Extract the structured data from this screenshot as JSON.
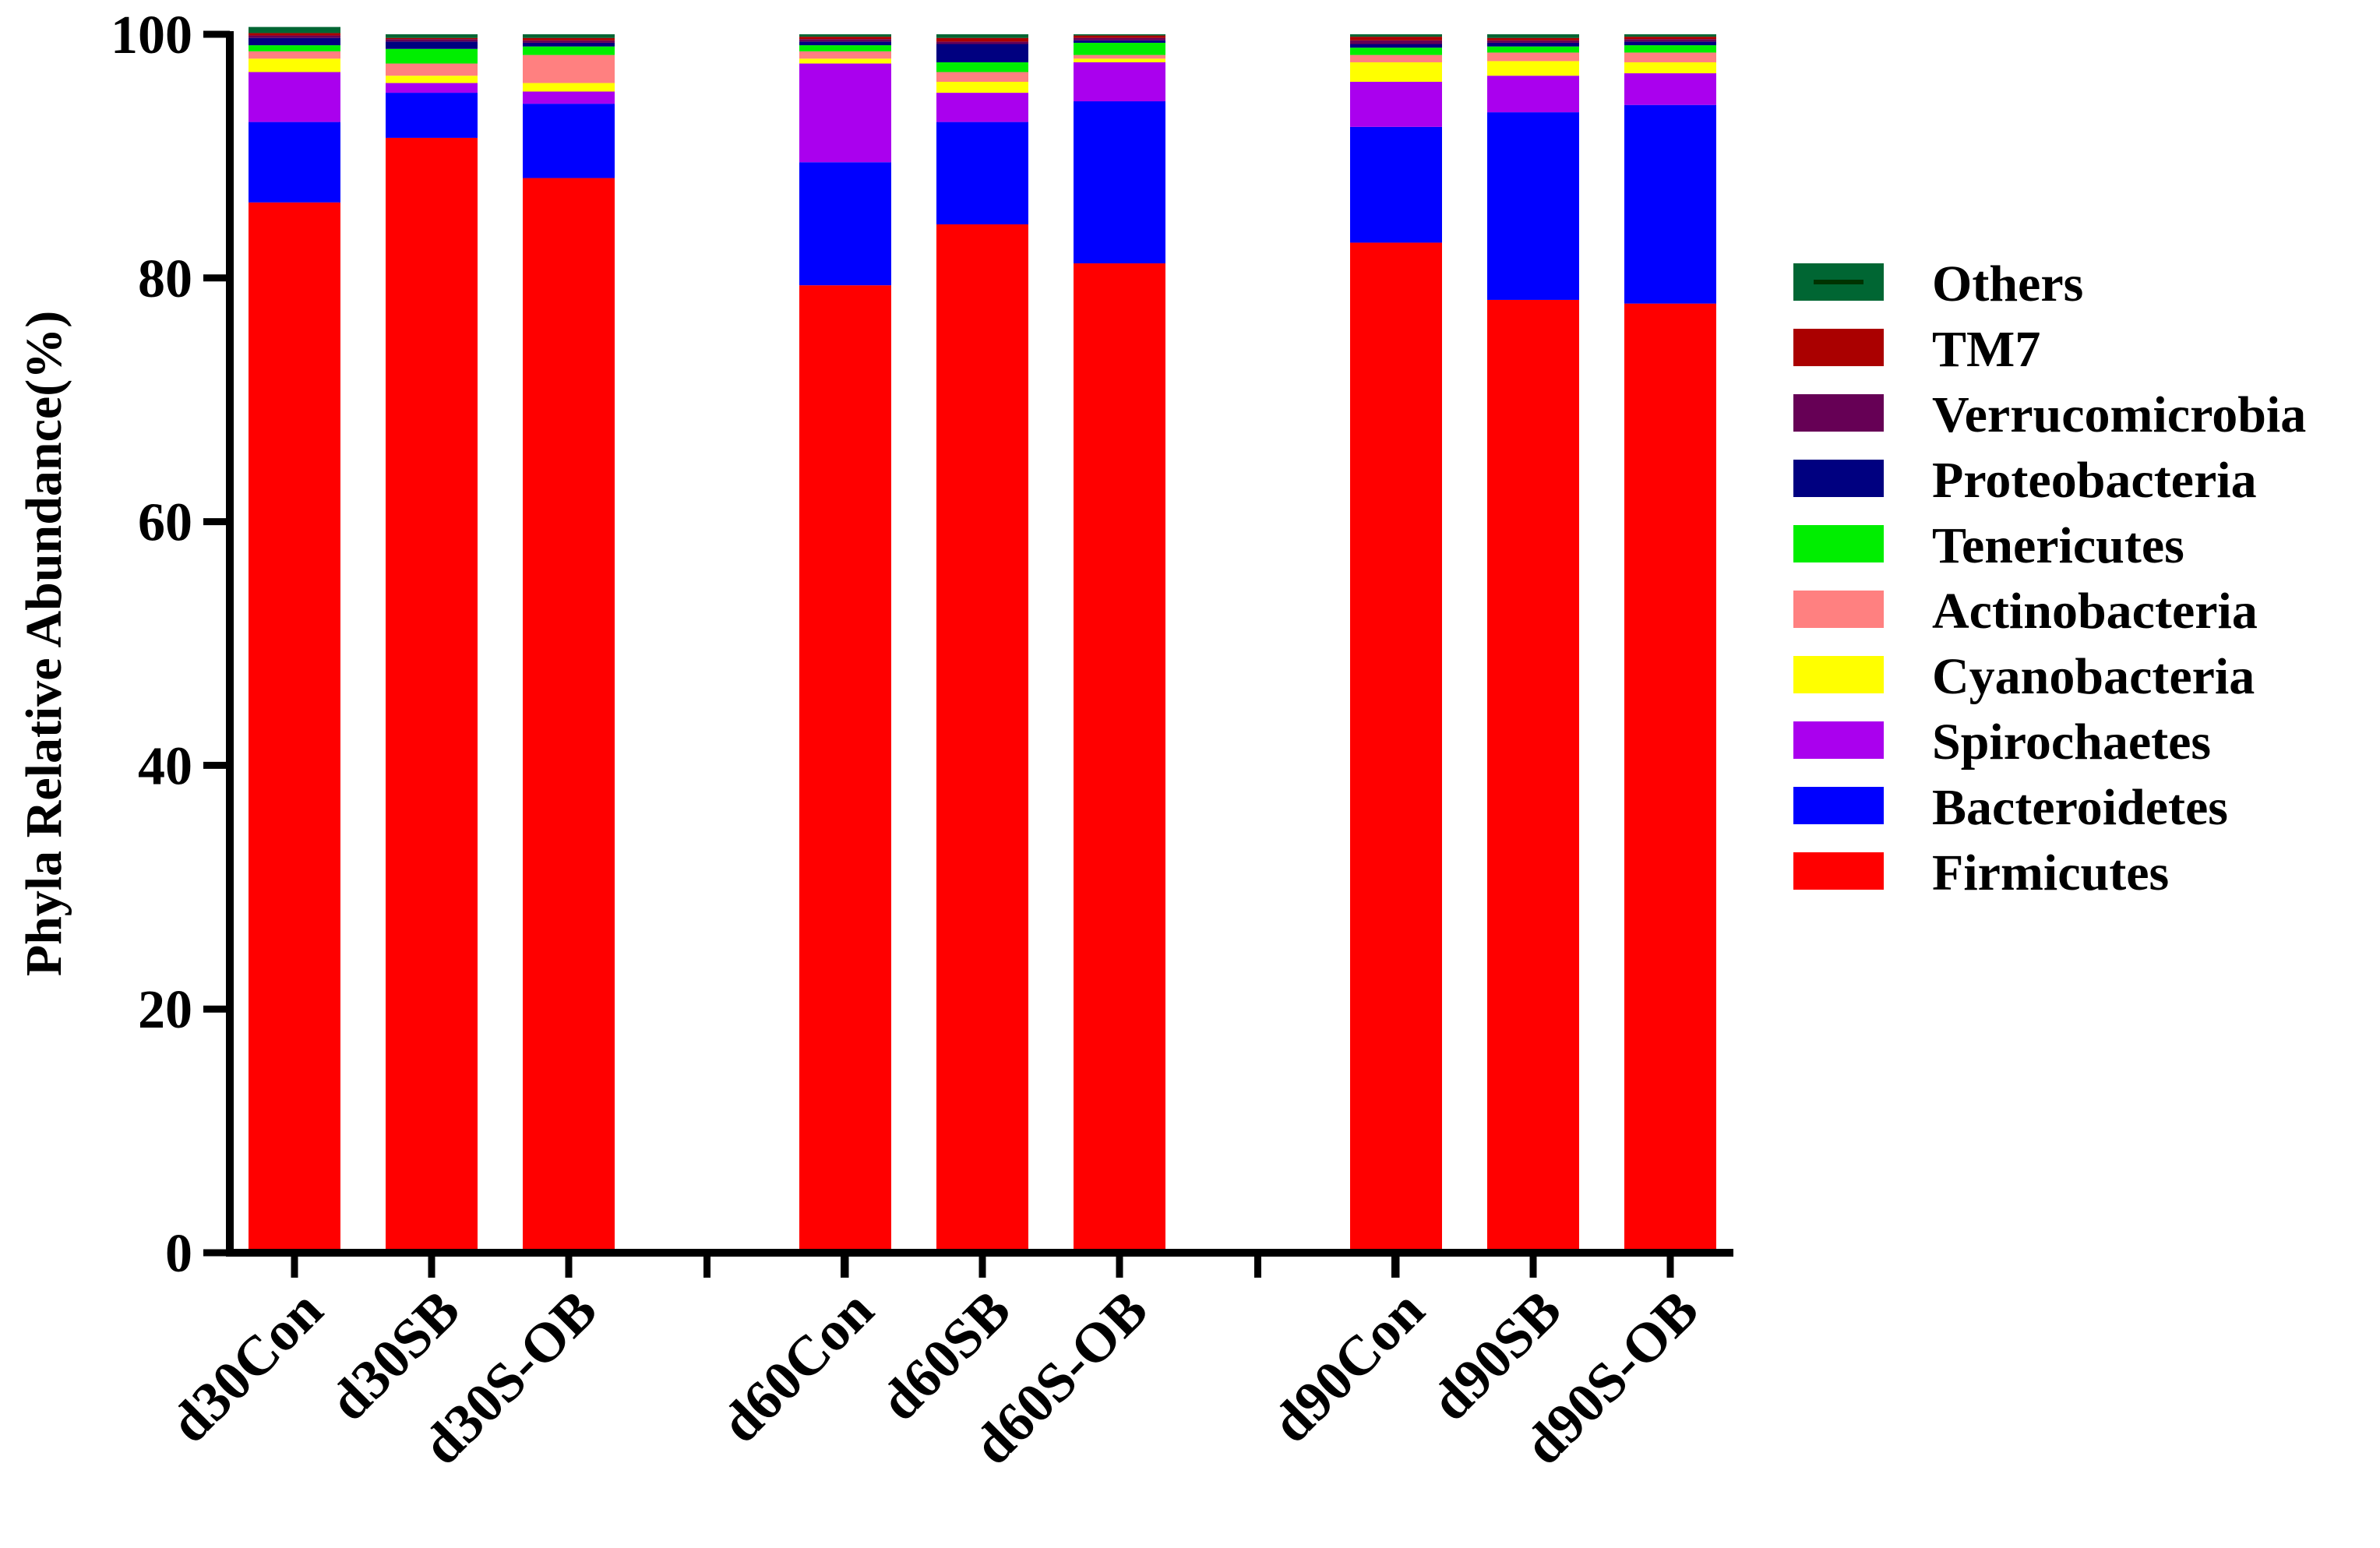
{
  "chart_data": {
    "type": "bar",
    "stacked": true,
    "ylabel": "Phyla Relative Abundance(%)",
    "xlabel": "",
    "ylim": [
      0,
      100
    ],
    "yticks": [
      "0",
      "20",
      "40",
      "60",
      "80",
      "100"
    ],
    "legend_position": "right",
    "categories": [
      "d30Con",
      "d30SB",
      "d30S-OB",
      "d60Con",
      "d60SB",
      "d60S-OB",
      "d90Con",
      "d90SB",
      "d90S-OB"
    ],
    "groups": [
      [
        "d30Con",
        "d30SB",
        "d30S-OB"
      ],
      [
        "d60Con",
        "d60SB",
        "d60S-OB"
      ],
      [
        "d90Con",
        "d90SB",
        "d90S-OB"
      ]
    ],
    "series": [
      {
        "name": "Firmicutes",
        "color": "#ff0000",
        "values": [
          86.2,
          91.5,
          88.2,
          79.4,
          84.4,
          81.2,
          82.9,
          78.2,
          77.9
        ]
      },
      {
        "name": "Bacteroidetes",
        "color": "#0000ff",
        "values": [
          6.6,
          3.7,
          6.1,
          10.1,
          8.4,
          13.3,
          9.5,
          15.4,
          16.3
        ]
      },
      {
        "name": "Spirochaetes",
        "color": "#aa00ee",
        "values": [
          4.1,
          0.8,
          1.0,
          8.1,
          2.4,
          3.2,
          3.7,
          3.0,
          2.6
        ]
      },
      {
        "name": "Cyanobacteria",
        "color": "#ffff00",
        "values": [
          1.1,
          0.6,
          0.7,
          0.4,
          0.9,
          0.3,
          1.6,
          1.2,
          0.9
        ]
      },
      {
        "name": "Actinobacteria",
        "color": "#ff8080",
        "values": [
          0.6,
          1.0,
          2.3,
          0.6,
          0.8,
          0.3,
          0.6,
          0.7,
          0.8
        ]
      },
      {
        "name": "Tenericutes",
        "color": "#00ee00",
        "values": [
          0.5,
          1.2,
          0.7,
          0.5,
          0.8,
          1.0,
          0.6,
          0.5,
          0.6
        ]
      },
      {
        "name": "Proteobacteria",
        "color": "#000080",
        "values": [
          0.6,
          0.6,
          0.3,
          0.3,
          1.5,
          0.2,
          0.3,
          0.3,
          0.3
        ]
      },
      {
        "name": "Verrucomicrobia",
        "color": "#660055",
        "values": [
          0.2,
          0.2,
          0.2,
          0.2,
          0.2,
          0.2,
          0.3,
          0.2,
          0.2
        ]
      },
      {
        "name": "TM7",
        "color": "#aa0000",
        "values": [
          0.2,
          0.1,
          0.2,
          0.2,
          0.3,
          0.2,
          0.3,
          0.2,
          0.2
        ]
      },
      {
        "name": "Others",
        "color": "#006633",
        "values": [
          0.5,
          0.3,
          0.3,
          0.2,
          0.3,
          0.1,
          0.2,
          0.3,
          0.2
        ]
      }
    ],
    "legend_order": [
      "Others",
      "TM7",
      "Verrucomicrobia",
      "Proteobacteria",
      "Tenericutes",
      "Actinobacteria",
      "Cyanobacteria",
      "Spirochaetes",
      "Bacteroidetes",
      "Firmicutes"
    ]
  }
}
